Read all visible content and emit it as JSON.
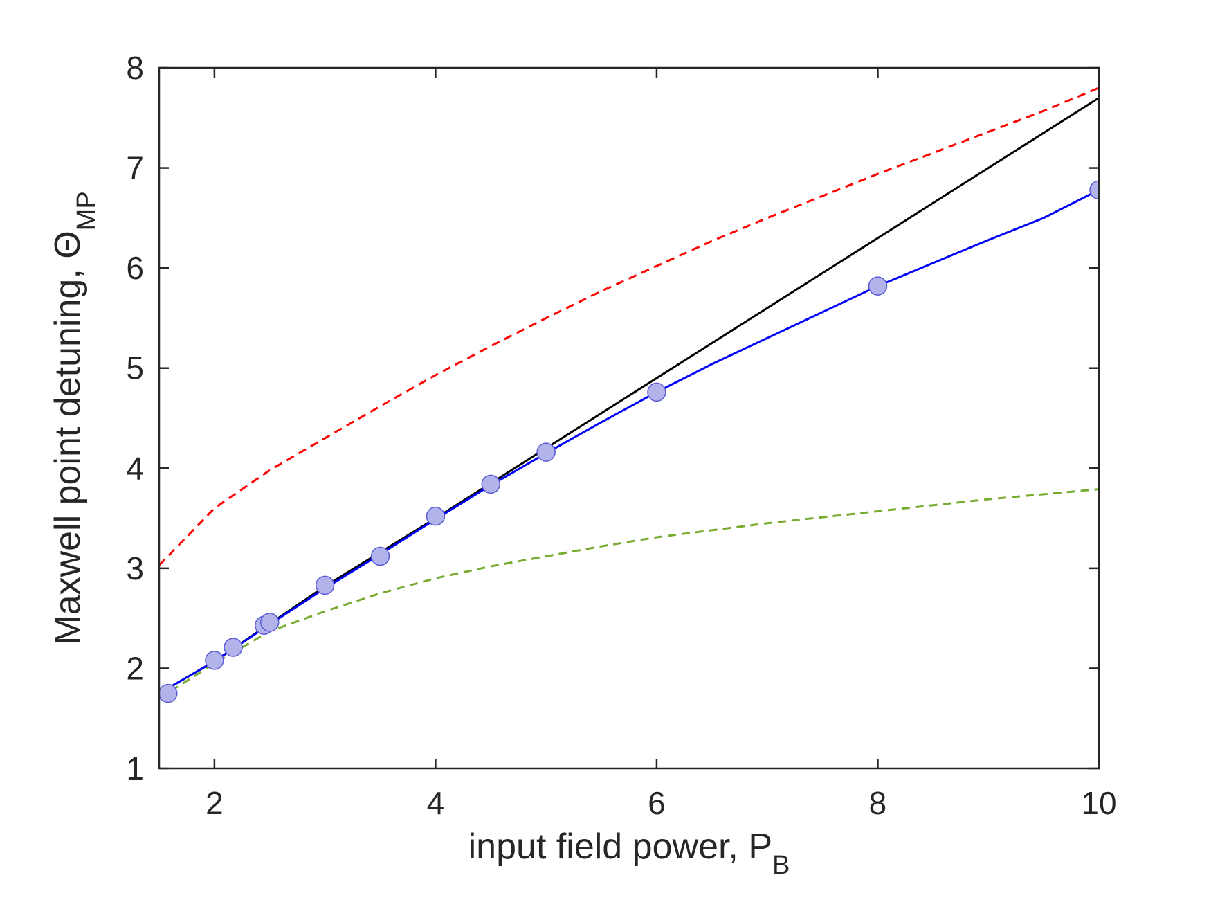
{
  "chart_data": {
    "type": "line",
    "xlabel": "input field power, P",
    "xlabel_sub": "B",
    "ylabel": "Maxwell point detuning, Θ",
    "ylabel_sub": "MP",
    "xlim": [
      1.5,
      10
    ],
    "ylim": [
      1,
      8
    ],
    "xticks": [
      2,
      4,
      6,
      8,
      10
    ],
    "yticks": [
      1,
      2,
      3,
      4,
      5,
      6,
      7,
      8
    ],
    "grid": false,
    "legend": "none",
    "colors": {
      "black_line": "#000000",
      "blue_line": "#0000ff",
      "red_dashed": "#ff0000",
      "green_dashed": "#77ac30",
      "marker_fill": "#b3b3ec",
      "marker_edge": "#5a5ad6",
      "axes": "#262626"
    },
    "series": [
      {
        "style": "solid",
        "color": "#000000",
        "x": [
          1.5,
          2,
          3,
          4,
          5,
          6,
          7,
          8,
          9,
          10
        ],
        "y": [
          1.75,
          2.07,
          2.82,
          3.5,
          4.2,
          4.9,
          5.6,
          6.3,
          7.0,
          7.7
        ]
      },
      {
        "style": "solid",
        "color": "#0000ff",
        "x": [
          1.5,
          2,
          2.5,
          3,
          3.5,
          4,
          4.5,
          5,
          5.5,
          6,
          6.5,
          7,
          7.5,
          8,
          8.5,
          9,
          9.5,
          10
        ],
        "y": [
          1.75,
          2.07,
          2.44,
          2.8,
          3.14,
          3.49,
          3.83,
          4.15,
          4.46,
          4.76,
          5.04,
          5.3,
          5.56,
          5.82,
          6.05,
          6.28,
          6.5,
          6.78
        ]
      },
      {
        "style": "dashed",
        "color": "#ff0000",
        "x": [
          1.5,
          2,
          2.5,
          3,
          3.5,
          4,
          4.5,
          5,
          5.5,
          6,
          6.5,
          7,
          7.5,
          8,
          8.5,
          9,
          9.5,
          10
        ],
        "y": [
          3.03,
          3.6,
          3.98,
          4.3,
          4.62,
          4.93,
          5.22,
          5.5,
          5.77,
          6.02,
          6.27,
          6.5,
          6.72,
          6.94,
          7.15,
          7.36,
          7.57,
          7.8
        ]
      },
      {
        "style": "dashed",
        "color": "#77ac30",
        "x": [
          1.5,
          2,
          2.5,
          3,
          3.5,
          4,
          4.5,
          5,
          5.5,
          6,
          6.5,
          7,
          7.5,
          8,
          8.5,
          9,
          9.5,
          10
        ],
        "y": [
          1.7,
          2.05,
          2.37,
          2.57,
          2.75,
          2.9,
          3.02,
          3.12,
          3.22,
          3.31,
          3.38,
          3.45,
          3.51,
          3.57,
          3.63,
          3.69,
          3.74,
          3.79
        ]
      },
      {
        "style": "markers",
        "marker": "circle",
        "color": "#b3b3ec",
        "x": [
          1.58,
          2.0,
          2.17,
          2.45,
          2.5,
          3.0,
          3.5,
          4.0,
          4.5,
          5.0,
          6.0,
          8.0,
          10.0
        ],
        "y": [
          1.75,
          2.08,
          2.21,
          2.43,
          2.46,
          2.83,
          3.12,
          3.52,
          3.84,
          4.16,
          4.76,
          5.82,
          6.78
        ]
      }
    ]
  }
}
